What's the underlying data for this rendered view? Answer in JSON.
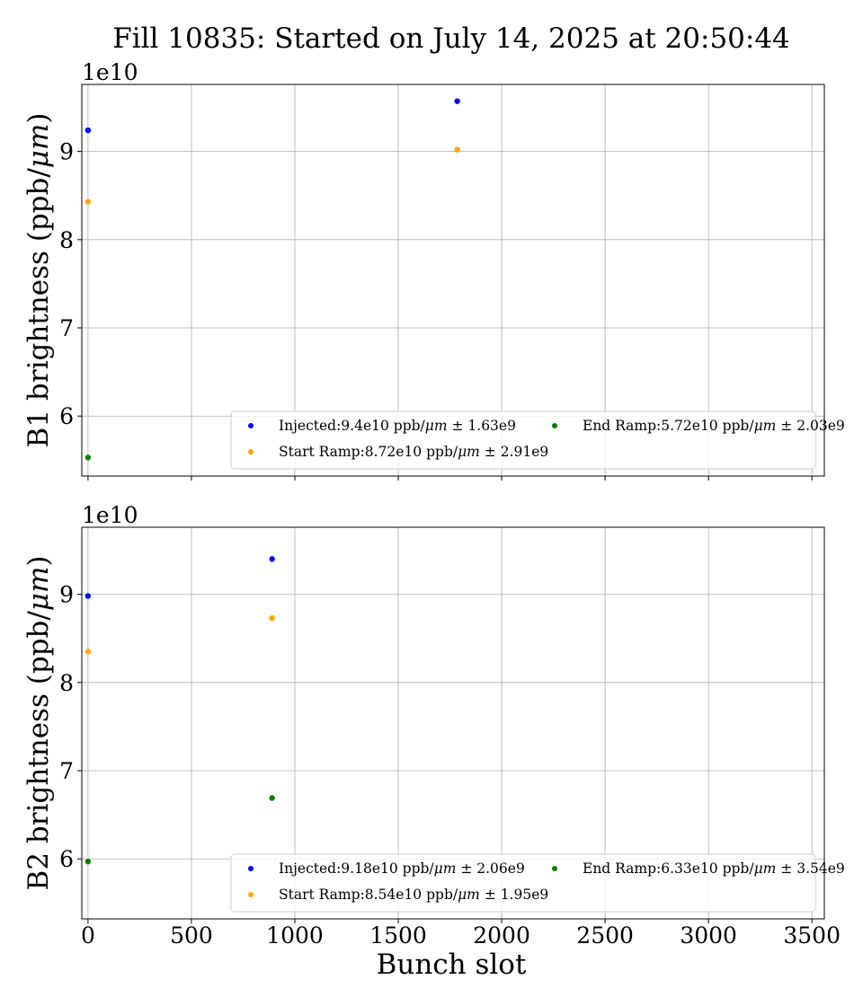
{
  "figure": {
    "title": "Fill 10835: Started on July 14, 2025 at 20:50:44",
    "xlabel": "Bunch slot"
  },
  "chart_data": [
    {
      "type": "scatter",
      "ylabel": "B1 brightness (ppb/μm)",
      "y_multiplier": "1e10",
      "xlim": [
        -30,
        3560
      ],
      "ylim": [
        53200000000.0,
        97600000000.0
      ],
      "xticks": [
        0,
        500,
        1000,
        1500,
        2000,
        2500,
        3000,
        3500
      ],
      "xtick_labels_visible": false,
      "yticks": [
        60000000000.0,
        70000000000.0,
        80000000000.0,
        90000000000.0
      ],
      "ytick_labels": [
        "6",
        "7",
        "8",
        "9"
      ],
      "grid": true,
      "legend_position": "lower-right",
      "series": [
        {
          "name": "Injected:9.4e10 ppb/μm ± 1.63e9",
          "color": "#0000ff",
          "points": [
            {
              "x": 0,
              "y": 92400000000.0
            },
            {
              "x": 1785,
              "y": 95700000000.0
            }
          ]
        },
        {
          "name": "Start Ramp:8.72e10 ppb/μm ± 2.91e9",
          "color": "#ffa500",
          "points": [
            {
              "x": 0,
              "y": 84300000000.0
            },
            {
              "x": 1785,
              "y": 90200000000.0
            }
          ]
        },
        {
          "name": "End Ramp:5.72e10 ppb/μm ± 2.03e9",
          "color": "#008000",
          "points": [
            {
              "x": 0,
              "y": 55300000000.0
            }
          ]
        }
      ]
    },
    {
      "type": "scatter",
      "ylabel": "B2 brightness (ppb/μm)",
      "y_multiplier": "1e10",
      "xlim": [
        -30,
        3560
      ],
      "ylim": [
        53200000000.0,
        97600000000.0
      ],
      "xticks": [
        0,
        500,
        1000,
        1500,
        2000,
        2500,
        3000,
        3500
      ],
      "xtick_labels": [
        "0",
        "500",
        "1000",
        "1500",
        "2000",
        "2500",
        "3000",
        "3500"
      ],
      "xtick_labels_visible": true,
      "yticks": [
        60000000000.0,
        70000000000.0,
        80000000000.0,
        90000000000.0
      ],
      "ytick_labels": [
        "6",
        "7",
        "8",
        "9"
      ],
      "grid": true,
      "legend_position": "lower-right",
      "series": [
        {
          "name": "Injected:9.18e10 ppb/μm ± 2.06e9",
          "color": "#0000ff",
          "points": [
            {
              "x": 0,
              "y": 89800000000.0
            },
            {
              "x": 890,
              "y": 94000000000.0
            }
          ]
        },
        {
          "name": "Start Ramp:8.54e10 ppb/μm ± 1.95e9",
          "color": "#ffa500",
          "points": [
            {
              "x": 0,
              "y": 83500000000.0
            },
            {
              "x": 890,
              "y": 87300000000.0
            }
          ]
        },
        {
          "name": "End Ramp:6.33e10 ppb/μm ± 3.54e9",
          "color": "#008000",
          "points": [
            {
              "x": 0,
              "y": 59700000000.0
            },
            {
              "x": 890,
              "y": 66900000000.0
            }
          ]
        }
      ]
    }
  ]
}
